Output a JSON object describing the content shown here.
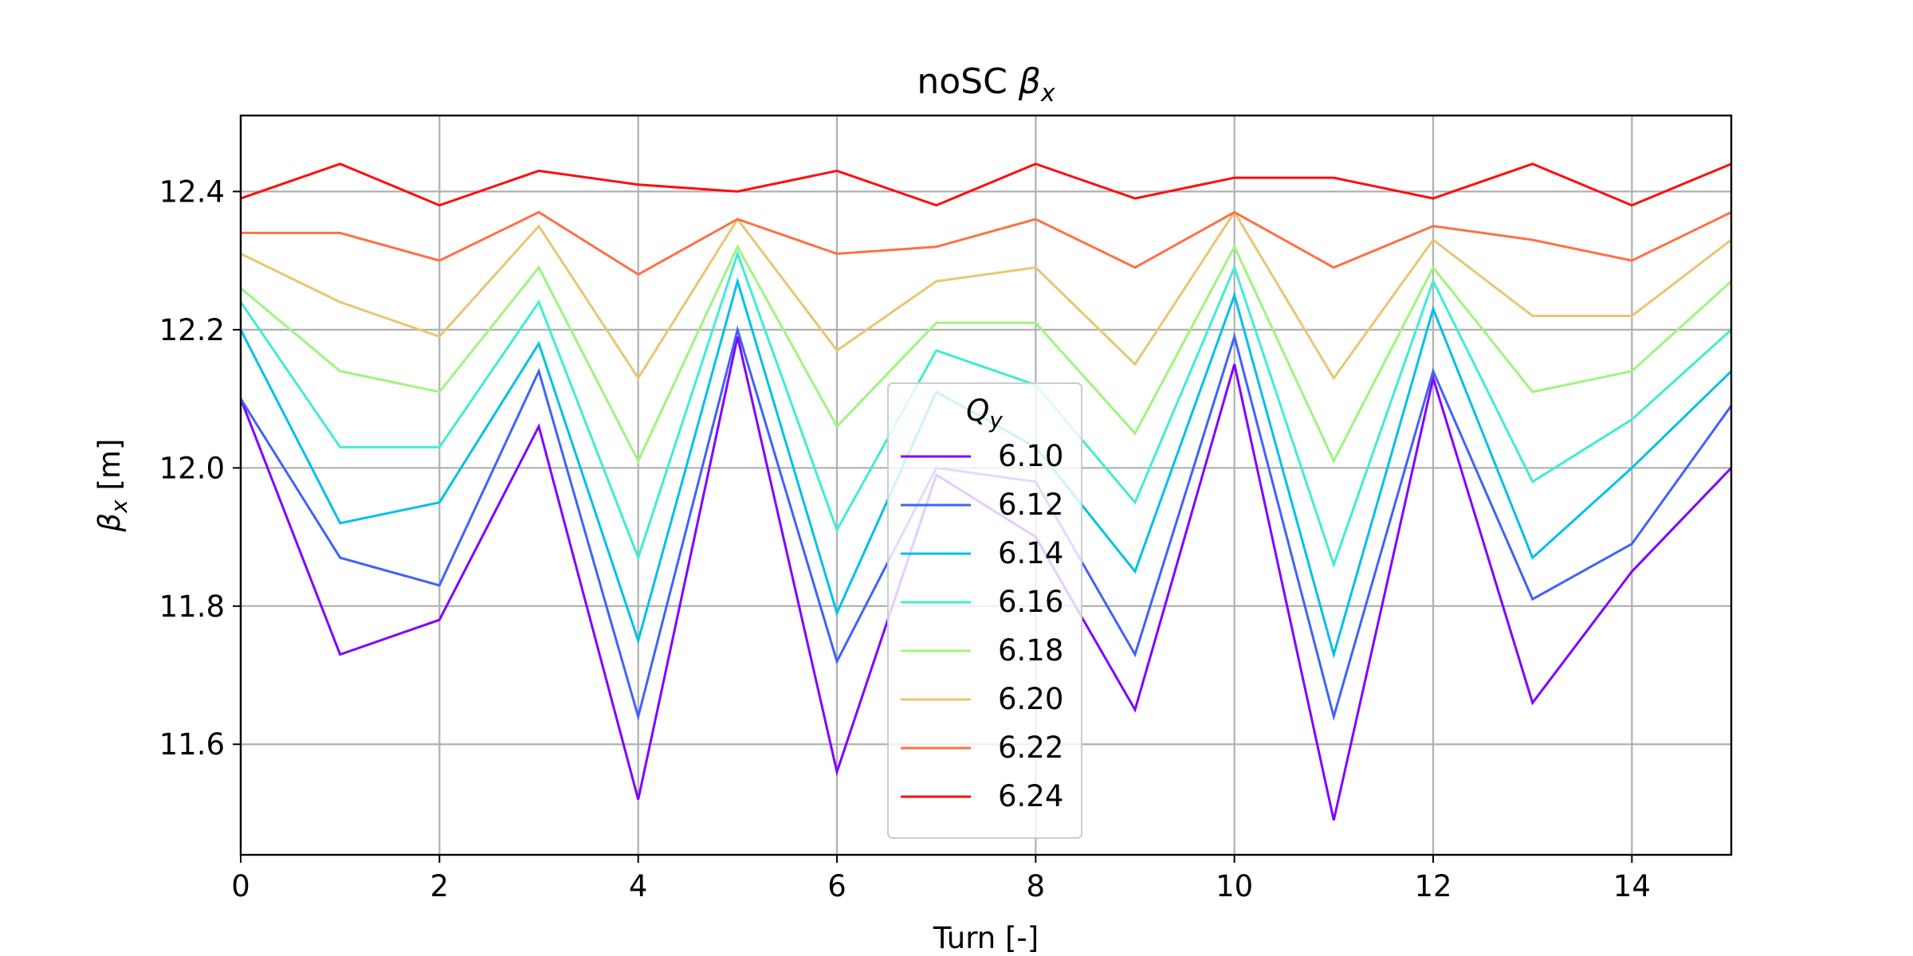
{
  "chart_data": {
    "type": "line",
    "title_prefix": "noSC",
    "title_symbol": "β",
    "title_subscript": "x",
    "xlabel": "Turn [-]",
    "ylabel_symbol": "β",
    "ylabel_subscript": "x",
    "ylabel_suffix": "[m]",
    "xlim": [
      0,
      15
    ],
    "ylim": [
      11.44,
      12.51
    ],
    "xticks": [
      0,
      2,
      4,
      6,
      8,
      10,
      12,
      14
    ],
    "yticks": [
      11.6,
      11.8,
      12.0,
      12.2,
      12.4
    ],
    "ytick_labels": [
      "11.6",
      "11.8",
      "12.0",
      "12.2",
      "12.4"
    ],
    "grid": true,
    "legend": {
      "title_symbol": "Q",
      "title_subscript": "y",
      "placement": "center-bottom"
    },
    "x": [
      0,
      1,
      2,
      3,
      4,
      5,
      6,
      7,
      8,
      9,
      10,
      11,
      12,
      13,
      14,
      15
    ],
    "series": [
      {
        "name": "6.10",
        "color": "#8000ff",
        "values": [
          12.1,
          11.73,
          11.78,
          12.06,
          11.52,
          12.19,
          11.56,
          11.99,
          11.9,
          11.65,
          12.15,
          11.49,
          12.13,
          11.66,
          11.85,
          12.0
        ]
      },
      {
        "name": "6.12",
        "color": "#4062fa",
        "values": [
          12.1,
          11.87,
          11.83,
          12.14,
          11.64,
          12.2,
          11.72,
          12.0,
          11.98,
          11.73,
          12.19,
          11.64,
          12.14,
          11.81,
          11.89,
          12.09
        ]
      },
      {
        "name": "6.14",
        "color": "#00c0e8",
        "values": [
          12.2,
          11.92,
          11.95,
          12.18,
          11.75,
          12.27,
          11.79,
          12.11,
          12.03,
          11.85,
          12.25,
          11.73,
          12.23,
          11.87,
          12.0,
          12.14
        ]
      },
      {
        "name": "6.16",
        "color": "#40ecd4",
        "values": [
          12.24,
          12.03,
          12.03,
          12.24,
          11.87,
          12.31,
          11.91,
          12.17,
          12.12,
          11.95,
          12.29,
          11.86,
          12.27,
          11.98,
          12.07,
          12.2
        ]
      },
      {
        "name": "6.18",
        "color": "#9ef57d",
        "values": [
          12.26,
          12.14,
          12.11,
          12.29,
          12.01,
          12.32,
          12.06,
          12.21,
          12.21,
          12.05,
          12.32,
          12.01,
          12.29,
          12.11,
          12.14,
          12.27
        ]
      },
      {
        "name": "6.20",
        "color": "#e8c672",
        "values": [
          12.31,
          12.24,
          12.19,
          12.35,
          12.13,
          12.36,
          12.17,
          12.27,
          12.29,
          12.15,
          12.37,
          12.13,
          12.33,
          12.22,
          12.22,
          12.33
        ]
      },
      {
        "name": "6.22",
        "color": "#ff7043",
        "values": [
          12.34,
          12.34,
          12.3,
          12.37,
          12.28,
          12.36,
          12.31,
          12.32,
          12.36,
          12.29,
          12.37,
          12.29,
          12.35,
          12.33,
          12.3,
          12.37
        ]
      },
      {
        "name": "6.24",
        "color": "#ff0d0d",
        "values": [
          12.39,
          12.44,
          12.38,
          12.43,
          12.41,
          12.4,
          12.43,
          12.38,
          12.44,
          12.39,
          12.42,
          12.42,
          12.39,
          12.44,
          12.38,
          12.44
        ]
      }
    ]
  }
}
